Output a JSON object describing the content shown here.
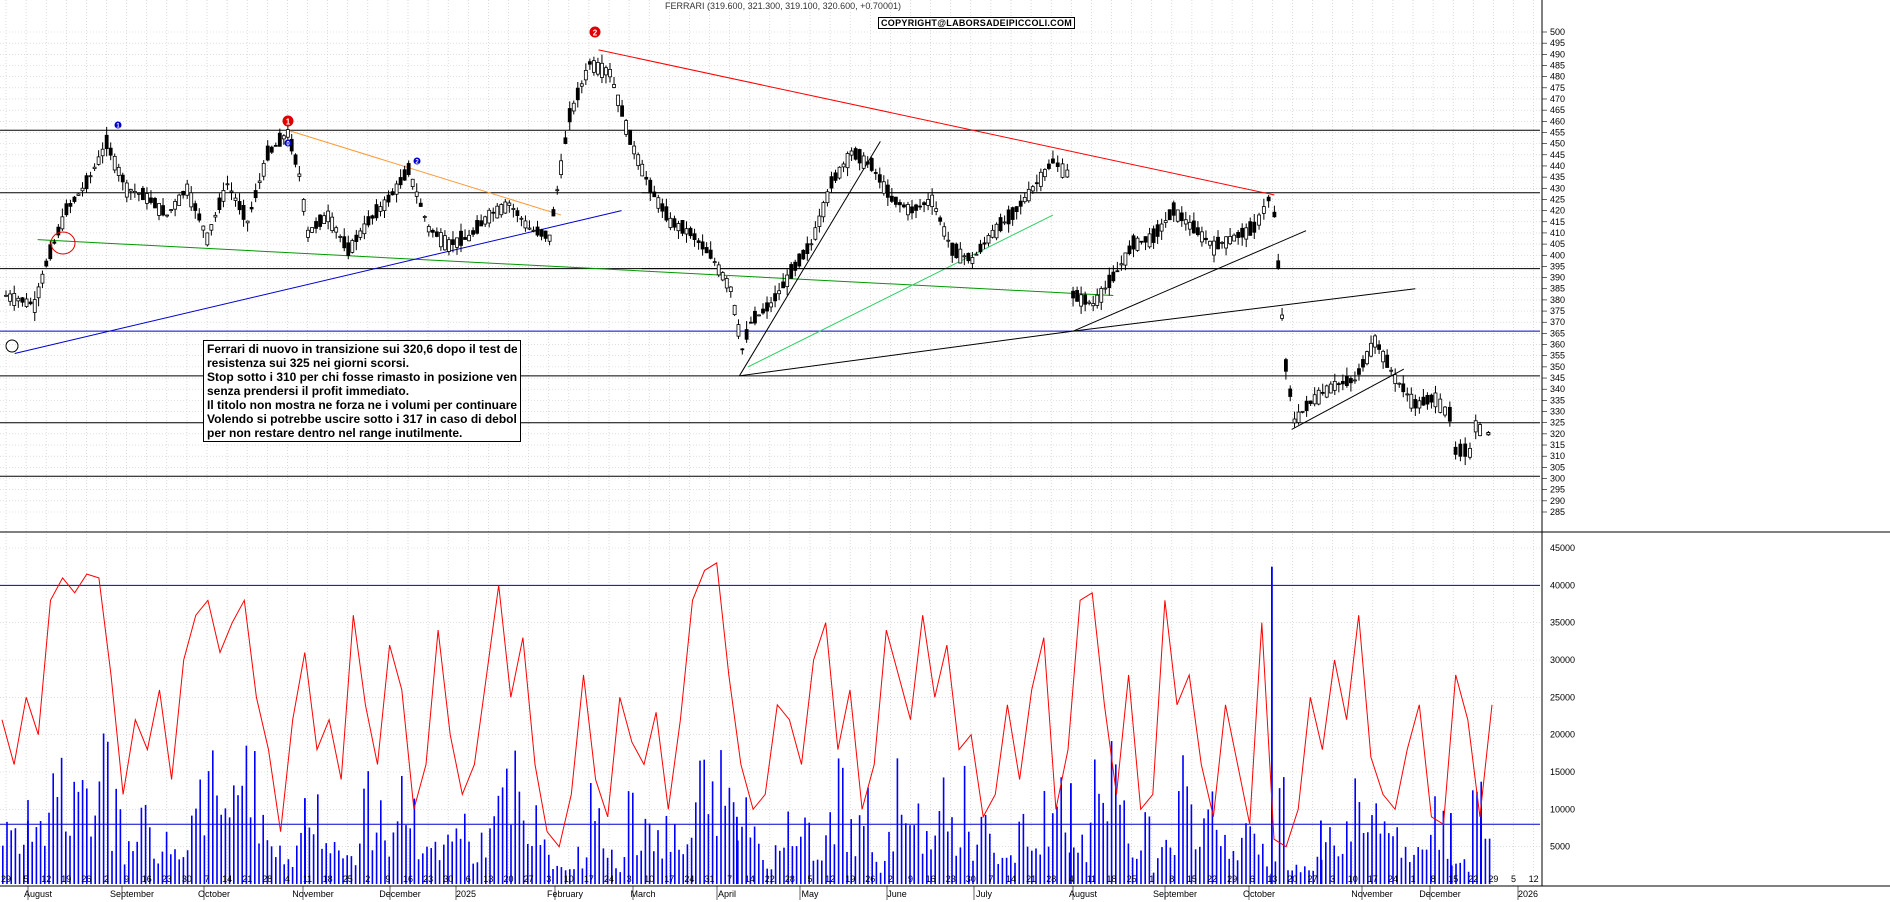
{
  "header": {
    "ticker_line": "FERRARI (319.600, 321.300, 319.100, 320.600, +0.70001)",
    "copyright": "COPYRIGHT@LABORSADEIPICCOLI.COM"
  },
  "annotation": {
    "lines": [
      "Ferrari di nuovo in transizione sui 320,6 dopo il test della",
      "resistenza sui 325 nei giorni scorsi.",
      "Stop sotto i 310 per chi fosse rimasto in posizione venerdi",
      "senza prendersi il profit immediato.",
      "Il titolo non mostra ne forza ne i volumi per continuare.",
      "Volendo si potrebbe uscire sotto i 317 in caso di debolezza",
      "per non restare dentro nel range inutilmente."
    ]
  },
  "markers": {
    "red_1": "1",
    "red_2": "2",
    "blue_1": "1",
    "blue_0": "0",
    "blue_2": "2"
  },
  "colors": {
    "price_candle": "#000000",
    "resistance_lines": "#000000",
    "blue_levels": "#0000cc",
    "red_trendline": "#ff0000",
    "orange_trendline": "#ff9933",
    "green_trendline": "#009900",
    "light_green_trendline": "#33cc66",
    "volume_bars": "#0000ff",
    "volume_ma": "#ff0000",
    "grid": "#cccccc"
  },
  "chart_data": [
    {
      "type": "candlestick",
      "title": "FERRARI (319.600, 321.300, 319.100, 320.600, +0.70001)",
      "y_axis": {
        "min": 285,
        "max": 500,
        "step": 5,
        "position": "right"
      },
      "x_axis_months": [
        "August",
        "September",
        "October",
        "November",
        "December",
        "2025",
        "February",
        "March",
        "April",
        "May",
        "June",
        "July",
        "August",
        "September",
        "October",
        "November",
        "December",
        "2026"
      ],
      "x_axis_days": [
        "29",
        "5",
        "12",
        "19",
        "26",
        "2",
        "9",
        "16",
        "23",
        "30",
        "7",
        "14",
        "21",
        "28",
        "4",
        "11",
        "18",
        "25",
        "2",
        "9",
        "16",
        "23",
        "30",
        "6",
        "13",
        "20",
        "27",
        "3",
        "10",
        "17",
        "24",
        "3",
        "10",
        "17",
        "24",
        "31",
        "7",
        "14",
        "22",
        "28",
        "5",
        "12",
        "19",
        "26",
        "2",
        "9",
        "16",
        "23",
        "30",
        "7",
        "14",
        "21",
        "28",
        "4",
        "11",
        "18",
        "25",
        "1",
        "8",
        "15",
        "22",
        "29",
        "6",
        "13",
        "20",
        "27",
        "3",
        "10",
        "17",
        "24",
        "1",
        "8",
        "15",
        "22",
        "29",
        "5",
        "12"
      ],
      "horizontal_levels": [
        {
          "value": 456,
          "color": "#000000"
        },
        {
          "value": 428,
          "color": "#000000"
        },
        {
          "value": 394,
          "color": "#000000"
        },
        {
          "value": 366,
          "color": "#0000cc"
        },
        {
          "value": 346,
          "color": "#000000"
        },
        {
          "value": 325,
          "color": "#000000"
        },
        {
          "value": 301,
          "color": "#000000"
        }
      ],
      "trendlines": [
        {
          "name": "red",
          "from": [
            "2025-02-17",
            492
          ],
          "to": [
            "2025-10-10",
            427
          ]
        },
        {
          "name": "orange",
          "from": [
            "2024-11-01",
            456
          ],
          "to": [
            "2025-02-04",
            418
          ]
        },
        {
          "name": "green",
          "from": [
            "2024-08-06",
            407
          ],
          "to": [
            "2025-08-15",
            382
          ]
        },
        {
          "name": "blue",
          "from": [
            "2024-07-29",
            356
          ],
          "to": [
            "2025-02-25",
            420
          ]
        }
      ],
      "closes": [
        {
          "date": "2024-07-26",
          "close": 382
        },
        {
          "date": "2024-08-05",
          "close": 378
        },
        {
          "date": "2024-08-09",
          "close": 396
        },
        {
          "date": "2024-08-16",
          "close": 420
        },
        {
          "date": "2024-08-23",
          "close": 432
        },
        {
          "date": "2024-08-30",
          "close": 450
        },
        {
          "date": "2024-09-06",
          "close": 430
        },
        {
          "date": "2024-09-13",
          "close": 426
        },
        {
          "date": "2024-09-20",
          "close": 418
        },
        {
          "date": "2024-09-27",
          "close": 430
        },
        {
          "date": "2024-10-04",
          "close": 408
        },
        {
          "date": "2024-10-11",
          "close": 432
        },
        {
          "date": "2024-10-18",
          "close": 415
        },
        {
          "date": "2024-10-25",
          "close": 445
        },
        {
          "date": "2024-11-01",
          "close": 455
        },
        {
          "date": "2024-11-05",
          "close": 436
        },
        {
          "date": "2024-11-08",
          "close": 410
        },
        {
          "date": "2024-11-15",
          "close": 418
        },
        {
          "date": "2024-11-22",
          "close": 402
        },
        {
          "date": "2024-11-29",
          "close": 415
        },
        {
          "date": "2024-12-06",
          "close": 425
        },
        {
          "date": "2024-12-13",
          "close": 438
        },
        {
          "date": "2024-12-20",
          "close": 412
        },
        {
          "date": "2024-12-27",
          "close": 405
        },
        {
          "date": "2025-01-03",
          "close": 408
        },
        {
          "date": "2025-01-10",
          "close": 418
        },
        {
          "date": "2025-01-17",
          "close": 423
        },
        {
          "date": "2025-01-24",
          "close": 412
        },
        {
          "date": "2025-01-31",
          "close": 408
        },
        {
          "date": "2025-02-04",
          "close": 440
        },
        {
          "date": "2025-02-07",
          "close": 462
        },
        {
          "date": "2025-02-14",
          "close": 486
        },
        {
          "date": "2025-02-21",
          "close": 482
        },
        {
          "date": "2025-02-28",
          "close": 452
        },
        {
          "date": "2025-03-07",
          "close": 430
        },
        {
          "date": "2025-03-14",
          "close": 415
        },
        {
          "date": "2025-03-21",
          "close": 410
        },
        {
          "date": "2025-03-28",
          "close": 400
        },
        {
          "date": "2025-04-04",
          "close": 385
        },
        {
          "date": "2025-04-08",
          "close": 358
        },
        {
          "date": "2025-04-11",
          "close": 370
        },
        {
          "date": "2025-04-18",
          "close": 378
        },
        {
          "date": "2025-04-25",
          "close": 392
        },
        {
          "date": "2025-05-02",
          "close": 405
        },
        {
          "date": "2025-05-09",
          "close": 432
        },
        {
          "date": "2025-05-16",
          "close": 446
        },
        {
          "date": "2025-05-23",
          "close": 440
        },
        {
          "date": "2025-05-30",
          "close": 425
        },
        {
          "date": "2025-06-06",
          "close": 420
        },
        {
          "date": "2025-06-13",
          "close": 425
        },
        {
          "date": "2025-06-20",
          "close": 402
        },
        {
          "date": "2025-06-27",
          "close": 398
        },
        {
          "date": "2025-07-04",
          "close": 410
        },
        {
          "date": "2025-07-11",
          "close": 418
        },
        {
          "date": "2025-07-18",
          "close": 430
        },
        {
          "date": "2025-07-25",
          "close": 442
        },
        {
          "date": "2025-07-30",
          "close": 437
        },
        {
          "date": "2025-08-01",
          "close": 382
        },
        {
          "date": "2025-08-08",
          "close": 378
        },
        {
          "date": "2025-08-15",
          "close": 390
        },
        {
          "date": "2025-08-22",
          "close": 405
        },
        {
          "date": "2025-08-29",
          "close": 408
        },
        {
          "date": "2025-09-05",
          "close": 420
        },
        {
          "date": "2025-09-12",
          "close": 412
        },
        {
          "date": "2025-09-19",
          "close": 404
        },
        {
          "date": "2025-09-26",
          "close": 408
        },
        {
          "date": "2025-10-03",
          "close": 412
        },
        {
          "date": "2025-10-08",
          "close": 425
        },
        {
          "date": "2025-10-10",
          "close": 418
        },
        {
          "date": "2025-10-14",
          "close": 350
        },
        {
          "date": "2025-10-17",
          "close": 326
        },
        {
          "date": "2025-10-24",
          "close": 336
        },
        {
          "date": "2025-10-31",
          "close": 342
        },
        {
          "date": "2025-11-07",
          "close": 344
        },
        {
          "date": "2025-11-14",
          "close": 362
        },
        {
          "date": "2025-11-21",
          "close": 345
        },
        {
          "date": "2025-11-28",
          "close": 333
        },
        {
          "date": "2025-12-05",
          "close": 336
        },
        {
          "date": "2025-12-10",
          "close": 328
        },
        {
          "date": "2025-12-12",
          "close": 312
        },
        {
          "date": "2025-12-17",
          "close": 312
        },
        {
          "date": "2025-12-19",
          "close": 324
        },
        {
          "date": "2025-12-22",
          "close": 320.6
        }
      ]
    },
    {
      "type": "bar",
      "title": "",
      "y_axis": {
        "min": 0,
        "max": 45000,
        "step": 5000,
        "position": "right"
      },
      "horizontal_levels": [
        {
          "value": 40000,
          "color": "#0000cc"
        },
        {
          "value": 8000,
          "color": "#0000cc"
        }
      ],
      "series": [
        {
          "type": "line",
          "values": [
            22000,
            16000,
            25000,
            20000,
            38000,
            41000,
            39000,
            41500,
            41000,
            28000,
            12000,
            22000,
            18000,
            26000,
            14000,
            30000,
            36000,
            38000,
            31000,
            35000,
            38000,
            25000,
            18000,
            7000,
            22000,
            31000,
            18000,
            22000,
            14000,
            36000,
            24000,
            16000,
            32000,
            26000,
            10000,
            16000,
            34000,
            20000,
            12000,
            16000,
            28000,
            40000,
            25000,
            33000,
            16000,
            7000,
            5000,
            12000,
            28000,
            14000,
            9000,
            25000,
            19000,
            16000,
            23000,
            10000,
            22000,
            38000,
            42000,
            43000,
            28000,
            16000,
            10000,
            12000,
            24000,
            22000,
            16000,
            30000,
            35000,
            18000,
            26000,
            10000,
            16000,
            34000,
            28000,
            22000,
            36000,
            25000,
            32000,
            18000,
            20000,
            9000,
            12000,
            24000,
            14000,
            26000,
            33000,
            10000,
            18000,
            38000,
            39000,
            24000,
            12000,
            28000,
            10000,
            12000,
            38000,
            24000,
            28000,
            16000,
            9000,
            24000,
            16000,
            8000,
            35000,
            6000,
            5000,
            10000,
            25000,
            18000,
            30000,
            22000,
            36000,
            17000,
            12000,
            10000,
            18000,
            24000,
            9000,
            8000,
            28000,
            22000,
            9000,
            24000
          ]
        }
      ]
    }
  ]
}
